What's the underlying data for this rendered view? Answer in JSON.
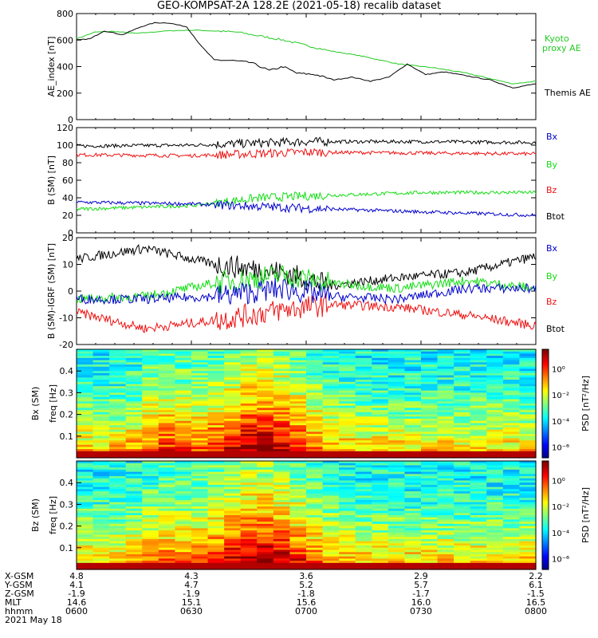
{
  "title": "GEO-KOMPSAT-2A 128.2E (2021-05-18) recalib dataset",
  "colors": {
    "black": "#000000",
    "red": "#ee1111",
    "green": "#11dd11",
    "blue": "#0000cc",
    "kyoto": "#22cc22"
  },
  "chart_data": [
    {
      "type": "line",
      "ylabel": "AE_index [nT]",
      "ylim": [
        0,
        800
      ],
      "yticks": [
        0,
        200,
        400,
        600,
        800
      ],
      "legend": [
        {
          "name": "Kyoto proxy AE",
          "color": "#22cc22"
        },
        {
          "name": "Themis AE",
          "color": "#000000"
        }
      ],
      "series": [
        {
          "name": "Kyoto proxy AE",
          "color": "#22cc22",
          "x": [
            0,
            0.04,
            0.08,
            0.13,
            0.2,
            0.26,
            0.35,
            0.45,
            0.55,
            0.62,
            0.7,
            0.78,
            0.85,
            0.9,
            0.95,
            1.0
          ],
          "y": [
            610,
            660,
            665,
            650,
            670,
            675,
            660,
            600,
            520,
            480,
            420,
            390,
            350,
            310,
            270,
            290
          ]
        },
        {
          "name": "Themis AE",
          "color": "#000000",
          "x": [
            0,
            0.03,
            0.06,
            0.1,
            0.14,
            0.17,
            0.2,
            0.24,
            0.27,
            0.3,
            0.34,
            0.38,
            0.42,
            0.45,
            0.48,
            0.52,
            0.56,
            0.6,
            0.64,
            0.68,
            0.72,
            0.76,
            0.8,
            0.85,
            0.9,
            0.95,
            1.0
          ],
          "y": [
            600,
            610,
            670,
            640,
            700,
            730,
            730,
            700,
            560,
            450,
            445,
            430,
            370,
            400,
            350,
            340,
            300,
            320,
            290,
            320,
            420,
            340,
            360,
            330,
            300,
            240,
            270
          ]
        }
      ]
    },
    {
      "type": "line",
      "ylabel": "B (SM) [nT]",
      "ylim": [
        0,
        120
      ],
      "yticks": [
        0,
        20,
        40,
        60,
        80,
        100,
        120
      ],
      "legend": [
        {
          "name": "Bx",
          "color": "#0000cc"
        },
        {
          "name": "By",
          "color": "#11dd11"
        },
        {
          "name": "Bz",
          "color": "#ee1111"
        },
        {
          "name": "Btot",
          "color": "#000000"
        }
      ],
      "series": [
        {
          "name": "Btot",
          "color": "#000000",
          "x": [
            0,
            0.25,
            0.5,
            0.75,
            1.0
          ],
          "y": [
            99,
            100,
            104,
            104,
            103
          ]
        },
        {
          "name": "Bz",
          "color": "#ee1111",
          "x": [
            0,
            0.25,
            0.5,
            0.75,
            1.0
          ],
          "y": [
            89,
            88,
            92,
            91,
            90
          ]
        },
        {
          "name": "By",
          "color": "#11dd11",
          "x": [
            0,
            0.25,
            0.4,
            0.5,
            0.75,
            1.0
          ],
          "y": [
            27,
            31,
            40,
            42,
            46,
            46
          ]
        },
        {
          "name": "Bx",
          "color": "#0000cc",
          "x": [
            0,
            0.25,
            0.5,
            0.75,
            1.0
          ],
          "y": [
            35,
            33,
            28,
            24,
            20
          ]
        }
      ]
    },
    {
      "type": "line",
      "ylabel": "B (SM)-IGRF (SM) [nT]",
      "ylim": [
        -20,
        20
      ],
      "yticks": [
        -20,
        -10,
        0,
        10,
        20
      ],
      "legend": [
        {
          "name": "Bx",
          "color": "#0000cc"
        },
        {
          "name": "By",
          "color": "#11dd11"
        },
        {
          "name": "Bz",
          "color": "#ee1111"
        },
        {
          "name": "Btot",
          "color": "#000000"
        }
      ],
      "series": [
        {
          "name": "Btot",
          "color": "#000000",
          "x": [
            0,
            0.15,
            0.3,
            0.45,
            0.55,
            0.7,
            0.85,
            1.0
          ],
          "y": [
            12,
            16,
            10,
            7,
            2,
            5,
            7,
            13
          ]
        },
        {
          "name": "Bz",
          "color": "#ee1111",
          "x": [
            0,
            0.15,
            0.3,
            0.45,
            0.55,
            0.7,
            0.85,
            1.0
          ],
          "y": [
            -8,
            -14,
            -11,
            -7,
            -5,
            -6,
            -9,
            -13
          ]
        },
        {
          "name": "By",
          "color": "#11dd11",
          "x": [
            0,
            0.15,
            0.3,
            0.45,
            0.55,
            0.7,
            0.85,
            1.0
          ],
          "y": [
            -3,
            -2,
            3,
            6,
            3,
            1,
            4,
            1
          ]
        },
        {
          "name": "Bx",
          "color": "#0000cc",
          "x": [
            0,
            0.15,
            0.3,
            0.45,
            0.55,
            0.7,
            0.85,
            1.0
          ],
          "y": [
            -3,
            -3,
            -2,
            1,
            -2,
            -3,
            1,
            1
          ]
        }
      ]
    },
    {
      "type": "heatmap",
      "ylabel": "Bx (SM) freq [Hz]",
      "ylim": [
        0,
        0.5
      ],
      "yticks": [
        0.1,
        0.2,
        0.3,
        0.4
      ],
      "colorbar": {
        "label": "PSD [nT²/Hz]",
        "ticks": [
          "10⁰",
          "10⁻²",
          "10⁻⁴",
          "10⁻⁶"
        ]
      }
    },
    {
      "type": "heatmap",
      "ylabel": "Bz (SM) freq [Hz]",
      "ylim": [
        0,
        0.5
      ],
      "yticks": [
        0.1,
        0.2,
        0.3,
        0.4
      ],
      "colorbar": {
        "label": "PSD [nT²/Hz]",
        "ticks": [
          "10⁰",
          "10⁻²",
          "10⁻⁴",
          "10⁻⁶"
        ]
      }
    }
  ],
  "footer": {
    "labels": [
      "X-GSM",
      "Y-GSM",
      "Z-GSM",
      "MLT",
      "hhmm",
      "2021 May 18"
    ],
    "columns": [
      {
        "vals": [
          "4.8",
          "4.1",
          "-1.9",
          "14.6",
          "0600"
        ]
      },
      {
        "vals": [
          "4.3",
          "4.7",
          "-1.9",
          "15.1",
          "0630"
        ]
      },
      {
        "vals": [
          "3.6",
          "5.2",
          "-1.8",
          "15.6",
          "0700"
        ]
      },
      {
        "vals": [
          "2.9",
          "5.7",
          "-1.7",
          "16.0",
          "0730"
        ]
      },
      {
        "vals": [
          "2.2",
          "6.1",
          "-1.5",
          "16.5",
          "0800"
        ]
      }
    ]
  }
}
